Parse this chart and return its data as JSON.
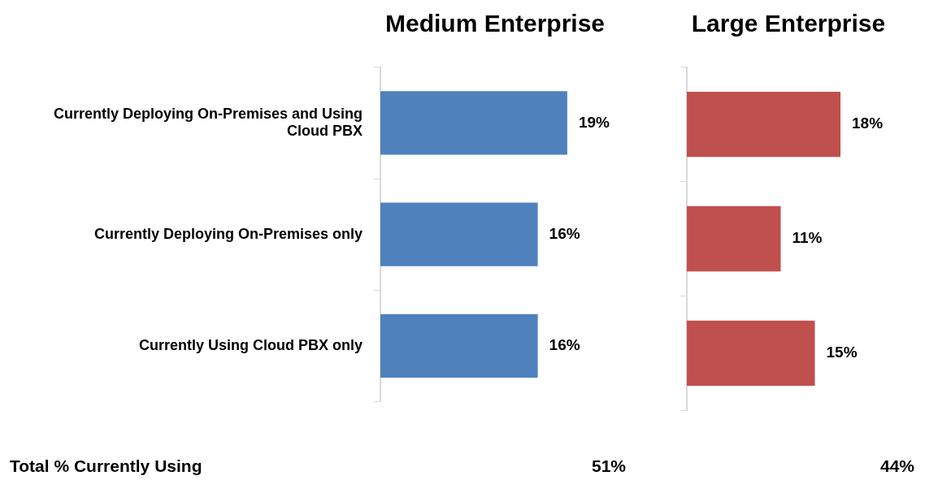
{
  "chart_data": [
    {
      "type": "bar",
      "orientation": "horizontal",
      "title": "Medium Enterprise",
      "categories": [
        "Currently Deploying On-Premises and Using Cloud PBX",
        "Currently Deploying On-Premises only",
        "Currently Using Cloud PBX only"
      ],
      "values": [
        19,
        16,
        16
      ],
      "color": "#4f81bd",
      "value_labels": [
        "19%",
        "16%",
        "16%"
      ],
      "grid": false,
      "legend": false,
      "annotations": [
        "Total % Currently Using",
        "51%"
      ]
    },
    {
      "type": "bar",
      "orientation": "horizontal",
      "title": "Large Enterprise",
      "categories": [
        null,
        null,
        null
      ],
      "values": [
        18,
        11,
        15
      ],
      "color": "#c0504d",
      "value_labels": [
        "18%",
        "11%",
        "15%"
      ],
      "grid": false,
      "legend": false,
      "annotations": [
        "44%"
      ]
    }
  ]
}
